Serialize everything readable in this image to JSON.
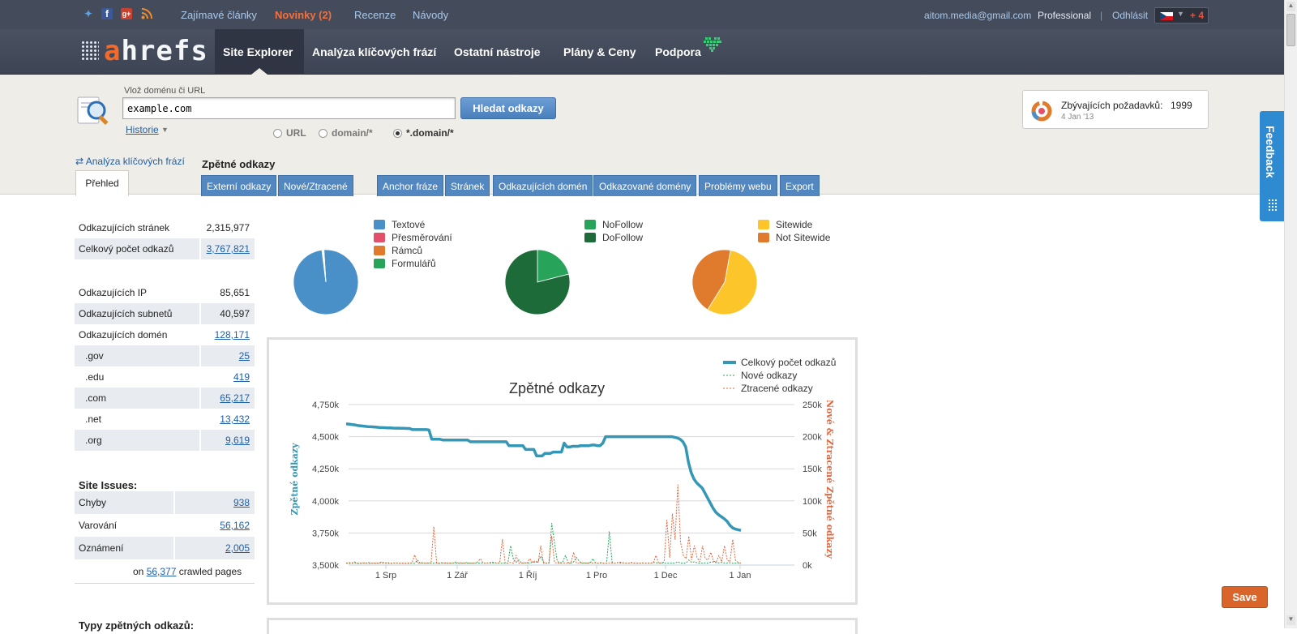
{
  "topbar": {
    "social_icons": [
      "twitter-icon",
      "facebook-icon",
      "google-plus-icon",
      "rss-icon"
    ],
    "links": [
      "Zajímavé články",
      "Novinky (2)",
      "Recenze",
      "Návody"
    ],
    "email": "aitom.media@gmail.com",
    "plan": "Professional",
    "separator": "|",
    "logout": "Odhlásit",
    "plus_count": "+ 4"
  },
  "nav": {
    "logo_a": "a",
    "logo_rest": "hrefs",
    "items": [
      "Site Explorer",
      "Analýza klíčových frází",
      "Ostatní nástroje",
      "Plány & Ceny",
      "Podpora"
    ]
  },
  "search": {
    "label": "Vlož doménu či URL",
    "value": "example.com",
    "button": "Hledat odkazy",
    "history": "Historie",
    "modes": [
      "URL",
      "domain/*",
      "*.domain/*"
    ],
    "selected_mode": "*.domain/*"
  },
  "quota": {
    "label": "Zbývajících požadavků:",
    "value": "1999",
    "date": "4 Jan '13"
  },
  "tabs": {
    "keyword_link": "⇄ Analýza klíčových frází",
    "overview": "Přehled",
    "section_title": "Zpětné odkazy",
    "items": [
      "Externí odkazy",
      "Nové/Ztracené",
      "Anchor fráze",
      "Stránek",
      "Odkazujících domén",
      "Odkazované domény",
      "Problémy webu",
      "Export"
    ]
  },
  "stats": {
    "group1": [
      {
        "label": "Odkazujících stránek",
        "value": "2,315,977",
        "link": false
      },
      {
        "label": "Celkový počet odkazů",
        "value": "3,767,821",
        "link": true
      }
    ],
    "group2": [
      {
        "label": "Odkazujících IP",
        "value": "85,651",
        "link": false
      },
      {
        "label": "Odkazujících subnetů",
        "value": "40,597",
        "link": false
      },
      {
        "label": "Odkazujících domén",
        "value": "128,171",
        "link": true
      },
      {
        "label": ".gov",
        "value": "25",
        "link": true
      },
      {
        "label": ".edu",
        "value": "419",
        "link": true
      },
      {
        "label": ".com",
        "value": "65,217",
        "link": true
      },
      {
        "label": ".net",
        "value": "13,432",
        "link": true
      },
      {
        "label": ".org",
        "value": "9,619",
        "link": true
      }
    ],
    "site_issues_title": "Site Issues:",
    "issues": [
      {
        "label": "Chyby",
        "value": "938"
      },
      {
        "label": "Varování",
        "value": "56,162"
      },
      {
        "label": "Oznámení",
        "value": "2,005"
      }
    ],
    "crawled_prefix": "on",
    "crawled_value": "56,377",
    "crawled_suffix": "crawled pages",
    "types_title": "Typy zpětných odkazů:"
  },
  "colors": {
    "blue": "#4a90c8",
    "red": "#e2506a",
    "orange": "#e07b2e",
    "green": "#27a35a",
    "darkgreen": "#1e6b3a",
    "yellow": "#fcc52a",
    "teal": "#3497b6",
    "linered": "#e2673f"
  },
  "pies": [
    {
      "legend": [
        "Textové",
        "Přesměrování",
        "Rámců",
        "Formulářů"
      ],
      "colors": [
        "#4a90c8",
        "#e2506a",
        "#e07b2e",
        "#27a35a"
      ],
      "values": [
        99,
        0.3,
        0.4,
        0.3
      ]
    },
    {
      "legend": [
        "NoFollow",
        "DoFollow"
      ],
      "colors": [
        "#27a35a",
        "#1e6b3a"
      ],
      "values": [
        21,
        79
      ]
    },
    {
      "legend": [
        "Sitewide",
        "Not Sitewide"
      ],
      "colors": [
        "#fcc52a",
        "#e07b2e"
      ],
      "values": [
        56,
        44
      ]
    }
  ],
  "chart_data": {
    "type": "line",
    "title": "Zpětné odkazy",
    "ylabel": "Zpětné odkazy",
    "y2label": "Nové & Ztracené Zpětné odkazy",
    "ylim": [
      3500,
      4750
    ],
    "y2lim": [
      0,
      250000
    ],
    "yticks": [
      "4,750k",
      "4,500k",
      "4,250k",
      "4,000k",
      "3,750k",
      "3,500k"
    ],
    "y2ticks": [
      "250k",
      "200k",
      "150k",
      "100k",
      "50k",
      "0k"
    ],
    "xticks": [
      "1 Srp",
      "1 Zář",
      "1 Říj",
      "1 Pro",
      "1 Dec",
      "1 Jan"
    ],
    "legend": [
      "Celkový počet odkazů",
      "Nové odkazy",
      "Ztracené odkazy"
    ],
    "series": [
      {
        "name": "Celkový počet odkazů",
        "axis": "left",
        "values": [
          4600,
          4598,
          4595,
          4592,
          4588,
          4585,
          4583,
          4580,
          4578,
          4577,
          4576,
          4574,
          4572,
          4571,
          4570,
          4569,
          4568,
          4567,
          4566,
          4566,
          4565,
          4565,
          4564,
          4564,
          4555,
          4555,
          4555,
          4555,
          4555,
          4555,
          4552,
          4480,
          4480,
          4480,
          4480,
          4474,
          4474,
          4474,
          4474,
          4474,
          4474,
          4474,
          4474,
          4474,
          4474,
          4460,
          4460,
          4460,
          4460,
          4460,
          4460,
          4460,
          4460,
          4460,
          4460,
          4460,
          4460,
          4460,
          4460,
          4430,
          4430,
          4430,
          4430,
          4430,
          4430,
          4400,
          4400,
          4400,
          4400,
          4350,
          4350,
          4350,
          4370,
          4370,
          4370,
          4380,
          4380,
          4380,
          4380,
          4450,
          4420,
          4420,
          4425,
          4425,
          4425,
          4430,
          4430,
          4430,
          4430,
          4435,
          4435,
          4430,
          4430,
          4450,
          4500,
          4500,
          4500,
          4500,
          4500,
          4500,
          4500,
          4500,
          4500,
          4500,
          4500,
          4500,
          4500,
          4500,
          4500,
          4500,
          4500,
          4500,
          4500,
          4500,
          4500,
          4500,
          4500,
          4500,
          4500,
          4495,
          4490,
          4480,
          4460,
          4420,
          4300,
          4220,
          4170,
          4140,
          4120,
          4100,
          4060,
          4020,
          3980,
          3940,
          3910,
          3890,
          3875,
          3860,
          3840,
          3810,
          3790,
          3780,
          3775,
          3770
        ]
      },
      {
        "name": "Nové odkazy",
        "axis": "right",
        "values": [
          3000,
          2500,
          2800,
          3200,
          2600,
          2500,
          2900,
          3100,
          2700,
          2800,
          3000,
          2600,
          2800,
          5000,
          3000,
          2700,
          2600,
          2800,
          3400,
          2900,
          2700,
          3000,
          2700,
          2800,
          3100,
          2600,
          8000,
          2900,
          3000,
          2800,
          3100,
          2900,
          3000,
          3200,
          2700,
          2900,
          3300,
          2800,
          2900,
          3200,
          3100,
          2900,
          2800,
          3000,
          3100,
          2900,
          3200,
          2800,
          3400,
          3000,
          3000,
          2900,
          3200,
          2800,
          3500,
          3000,
          3200,
          2800,
          3100,
          3000,
          30000,
          9000,
          4000,
          8000,
          3200,
          3100,
          3500,
          3000,
          4500,
          4000,
          5000,
          14000,
          4500,
          3000,
          3000,
          65000,
          35000,
          6000,
          3200,
          5000,
          15000,
          4000,
          3000,
          5000,
          12000,
          6000,
          3000,
          3000,
          3000,
          2900,
          10000,
          3200,
          3000,
          3000,
          2800,
          3000,
          52000,
          5000,
          3000,
          3500,
          4500,
          3300,
          3100,
          3000,
          4000,
          3200,
          3000,
          2900,
          3000,
          3200,
          3000,
          2800,
          4000,
          3500,
          3200,
          3500,
          3000,
          3000,
          3000,
          3200,
          3000,
          5000,
          3000,
          3200,
          3300,
          8000,
          4000,
          5000,
          3500,
          3000,
          3000,
          3500,
          3000,
          4500,
          5000,
          3800,
          3500,
          4000,
          3300,
          3400,
          3600,
          2800,
          3000,
          2900,
          3100
        ]
      },
      {
        "name": "Ztracené odkazy",
        "axis": "right",
        "values": [
          3000,
          4000,
          3000,
          5000,
          3000,
          3200,
          3500,
          3000,
          4000,
          3000,
          3200,
          3100,
          3500,
          3000,
          3000,
          4000,
          3000,
          3000,
          3500,
          3000,
          3200,
          3000,
          3000,
          3500,
          3000,
          16000,
          3000,
          3000,
          4000,
          3000,
          3500,
          3000,
          60000,
          3000,
          3000,
          4000,
          3000,
          3500,
          3000,
          3000,
          5000,
          3000,
          3500,
          3000,
          4000,
          3000,
          3000,
          3500,
          5000,
          10000,
          3000,
          3500,
          3000,
          5000,
          4000,
          3000,
          3500,
          40000,
          3000,
          3000,
          4000,
          3000,
          15000,
          3000,
          3000,
          3500,
          3000,
          10000,
          4000,
          7000,
          3500,
          30000,
          3000,
          3000,
          4000,
          45000,
          4000,
          3000,
          3000,
          3000,
          3500,
          3000,
          3000,
          20000,
          3000,
          3000,
          3500,
          3500,
          3000,
          4000,
          3000,
          3500,
          3000,
          4000,
          3000,
          3000,
          3500,
          3000,
          3000,
          4000,
          3000,
          3500,
          3000,
          3000,
          3500,
          3000,
          3000,
          3000,
          3500,
          3000,
          3200,
          3500,
          3000,
          15000,
          3000,
          3000,
          5000,
          70000,
          12000,
          80000,
          40000,
          125000,
          35000,
          15000,
          10000,
          45000,
          8000,
          30000,
          12000,
          5000,
          30000,
          10000,
          8000,
          20000,
          6000,
          5000,
          15000,
          5000,
          30000,
          8000,
          5000,
          40000,
          8000,
          4000,
          3000
        ]
      }
    ]
  }
}
